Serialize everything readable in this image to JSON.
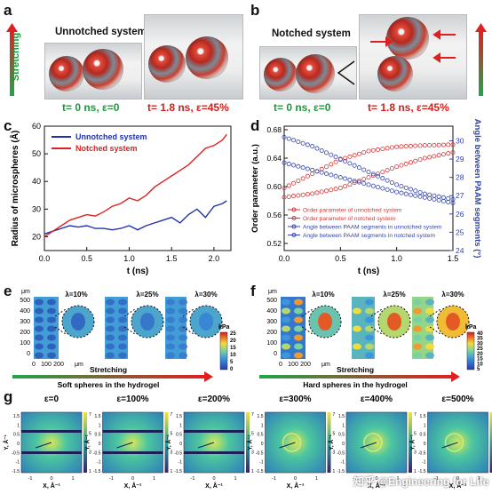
{
  "panel_labels": {
    "a": "a",
    "b": "b",
    "c": "c",
    "d": "d",
    "e": "e",
    "f": "f",
    "g": "g"
  },
  "panel_a": {
    "side_label": "Stretching",
    "title": "Unnotched system",
    "t0": "t= 0 ns, ε=0",
    "t1": "t= 1.8 ns, ε=45%"
  },
  "panel_b": {
    "title": "Notched system",
    "t0": "t= 0 ns, ε=0",
    "t1": "t= 1.8 ns, ε=45%"
  },
  "panel_e": {
    "y_unit": "μm",
    "y_ticks": [
      "500",
      "400",
      "300",
      "200",
      "100",
      "0"
    ],
    "x_ticks": [
      "0",
      "100",
      "200"
    ],
    "x_unit": "μm",
    "lambdas": [
      "λ=10%",
      "λ=25%",
      "λ=30%"
    ],
    "cbar_unit": "kPa",
    "cbar_ticks": [
      "25",
      "20",
      "15",
      "10",
      "5",
      "0"
    ],
    "arrow_label": "Stretching",
    "caption": "Soft spheres in the hydrogel"
  },
  "panel_f": {
    "y_unit": "μm",
    "y_ticks": [
      "500",
      "400",
      "300",
      "200",
      "100",
      "0"
    ],
    "x_ticks": [
      "0",
      "100",
      "200"
    ],
    "x_unit": "μm",
    "lambdas": [
      "λ=10%",
      "λ=25%",
      "λ=30%"
    ],
    "cbar_unit": "kPa",
    "cbar_ticks": [
      "40",
      "35",
      "30",
      "25",
      "20",
      "15",
      "10",
      "5"
    ],
    "arrow_label": "Stretching",
    "caption": "Hard spheres in the hydrogel"
  },
  "panel_g": {
    "strains": [
      "ε=0",
      "ε=100%",
      "ε=200%",
      "ε=300%",
      "ε=400%",
      "ε=500%"
    ],
    "y_label": "Y, Å⁻¹",
    "x_label": "X, Å⁻¹",
    "y_ticks": [
      "1.5",
      "1",
      "0.5",
      "0",
      "-0.5",
      "-1",
      "-1.5"
    ],
    "x_ticks": [
      "-1",
      "0",
      "1"
    ],
    "cbar_ticks": [
      "7",
      "6",
      "5",
      "4",
      "3",
      "2",
      "1"
    ],
    "watermark": "知乎 @Engineering for Life"
  },
  "chart_data": [
    {
      "type": "line",
      "panel": "c",
      "xlabel": "t (ns)",
      "ylabel": "Radius of microspheres (Å)",
      "xlim": [
        0,
        2.2
      ],
      "ylim": [
        15,
        60
      ],
      "x_ticks": [
        "0.0",
        "0.5",
        "1.0",
        "1.5",
        "2.0"
      ],
      "y_ticks": [
        "20",
        "30",
        "40",
        "50",
        "60"
      ],
      "legend_position": "top-left",
      "series": [
        {
          "name": "Unnotched system",
          "color": "#2233aa",
          "x": [
            0,
            0.1,
            0.2,
            0.3,
            0.4,
            0.5,
            0.6,
            0.7,
            0.8,
            0.9,
            1.0,
            1.1,
            1.2,
            1.3,
            1.4,
            1.5,
            1.6,
            1.7,
            1.8,
            1.9,
            2.0,
            2.1,
            2.15
          ],
          "values": [
            21,
            22,
            23,
            24,
            23.5,
            24,
            23,
            23,
            22.5,
            23,
            24,
            22.5,
            24,
            25,
            26,
            27,
            25,
            28,
            30,
            27,
            31,
            32,
            33
          ]
        },
        {
          "name": "Notched system",
          "color": "#dd2222",
          "x": [
            0,
            0.1,
            0.2,
            0.3,
            0.4,
            0.5,
            0.6,
            0.7,
            0.8,
            0.9,
            1.0,
            1.1,
            1.2,
            1.3,
            1.4,
            1.5,
            1.6,
            1.7,
            1.8,
            1.9,
            2.0,
            2.1,
            2.15
          ],
          "values": [
            20,
            22,
            24,
            26,
            27,
            28,
            27.5,
            29,
            31,
            32,
            34,
            33,
            35,
            38,
            40,
            42,
            44,
            46,
            49,
            52,
            53,
            55,
            57
          ]
        }
      ]
    },
    {
      "type": "scatter",
      "panel": "d",
      "xlabel": "t (ns)",
      "ylabel": "Order parameter (a.u.)",
      "y2label": "Angle between PAAM segments (°)",
      "xlim": [
        0,
        1.5
      ],
      "ylim": [
        0.51,
        0.685
      ],
      "y2lim": [
        24,
        30.8
      ],
      "x_ticks": [
        "0.0",
        "0.5",
        "1.0",
        "1.5"
      ],
      "y_ticks": [
        "0.52",
        "0.56",
        "0.60",
        "0.64",
        "0.68"
      ],
      "y2_ticks": [
        "24",
        "25",
        "26",
        "27",
        "28",
        "29",
        "30"
      ],
      "legend_position": "bottom-left",
      "series": [
        {
          "name": "Order parameter of unnotched system",
          "color": "#dd3333",
          "axis": "left",
          "x": [
            0,
            0.25,
            0.5,
            0.75,
            1.0,
            1.25,
            1.5
          ],
          "values": [
            0.585,
            0.59,
            0.598,
            0.613,
            0.628,
            0.64,
            0.648
          ]
        },
        {
          "name": "Order parameter of notched system",
          "color": "#dd3333",
          "axis": "left",
          "x": [
            0,
            0.25,
            0.5,
            0.75,
            1.0,
            1.25,
            1.5
          ],
          "values": [
            0.598,
            0.618,
            0.638,
            0.65,
            0.656,
            0.658,
            0.659
          ]
        },
        {
          "name": "Angle between PAAM segments in unnotched system",
          "color": "#3344aa",
          "axis": "right",
          "x": [
            0,
            0.25,
            0.5,
            0.75,
            1.0,
            1.25,
            1.5
          ],
          "values": [
            28.8,
            28.4,
            28.0,
            27.6,
            27.2,
            26.9,
            26.6
          ]
        },
        {
          "name": "Angle between PAAM segments in notched system",
          "color": "#3344aa",
          "axis": "right",
          "x": [
            0,
            0.25,
            0.5,
            0.75,
            1.0,
            1.25,
            1.5
          ],
          "values": [
            30.2,
            29.7,
            29.0,
            28.3,
            27.6,
            27.1,
            26.8
          ]
        }
      ]
    }
  ]
}
